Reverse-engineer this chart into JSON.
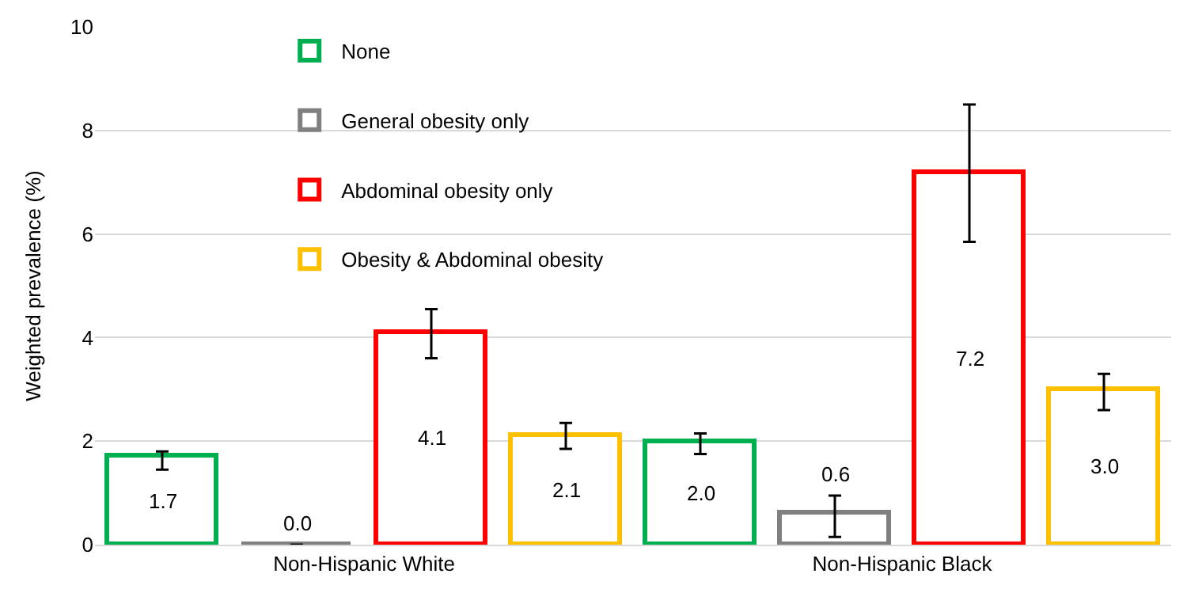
{
  "chart_data": {
    "type": "bar",
    "ylabel": "Weighted prevalence (%)",
    "categories": [
      "Non-Hispanic White",
      "Non-Hispanic Black"
    ],
    "series": [
      {
        "name": "None",
        "color": "#00b050",
        "values": [
          1.7,
          2.0
        ],
        "errors": [
          [
            1.45,
            1.8
          ],
          [
            1.75,
            2.15
          ]
        ],
        "value_labels": [
          "1.7",
          "2.0"
        ]
      },
      {
        "name": "General obesity only",
        "color": "#808080",
        "values": [
          0.0,
          0.6
        ],
        "errors": [
          null,
          [
            0.15,
            0.95
          ]
        ],
        "value_labels": [
          "0.0",
          "0.6"
        ]
      },
      {
        "name": "Abdominal obesity only",
        "color": "#ff0000",
        "values": [
          4.1,
          7.2
        ],
        "errors": [
          [
            3.6,
            4.55
          ],
          [
            5.85,
            8.5
          ]
        ],
        "value_labels": [
          "4.1",
          "7.2"
        ]
      },
      {
        "name": "Obesity & Abdominal obesity",
        "color": "#ffc000",
        "values": [
          2.1,
          3.0
        ],
        "errors": [
          [
            1.85,
            2.35
          ],
          [
            2.6,
            3.3
          ]
        ],
        "value_labels": [
          "2.1",
          "3.0"
        ]
      }
    ],
    "ylim": [
      0,
      10
    ],
    "yticks": [
      0,
      2,
      4,
      6,
      8,
      10
    ],
    "grid": "y",
    "legend": "top left"
  }
}
